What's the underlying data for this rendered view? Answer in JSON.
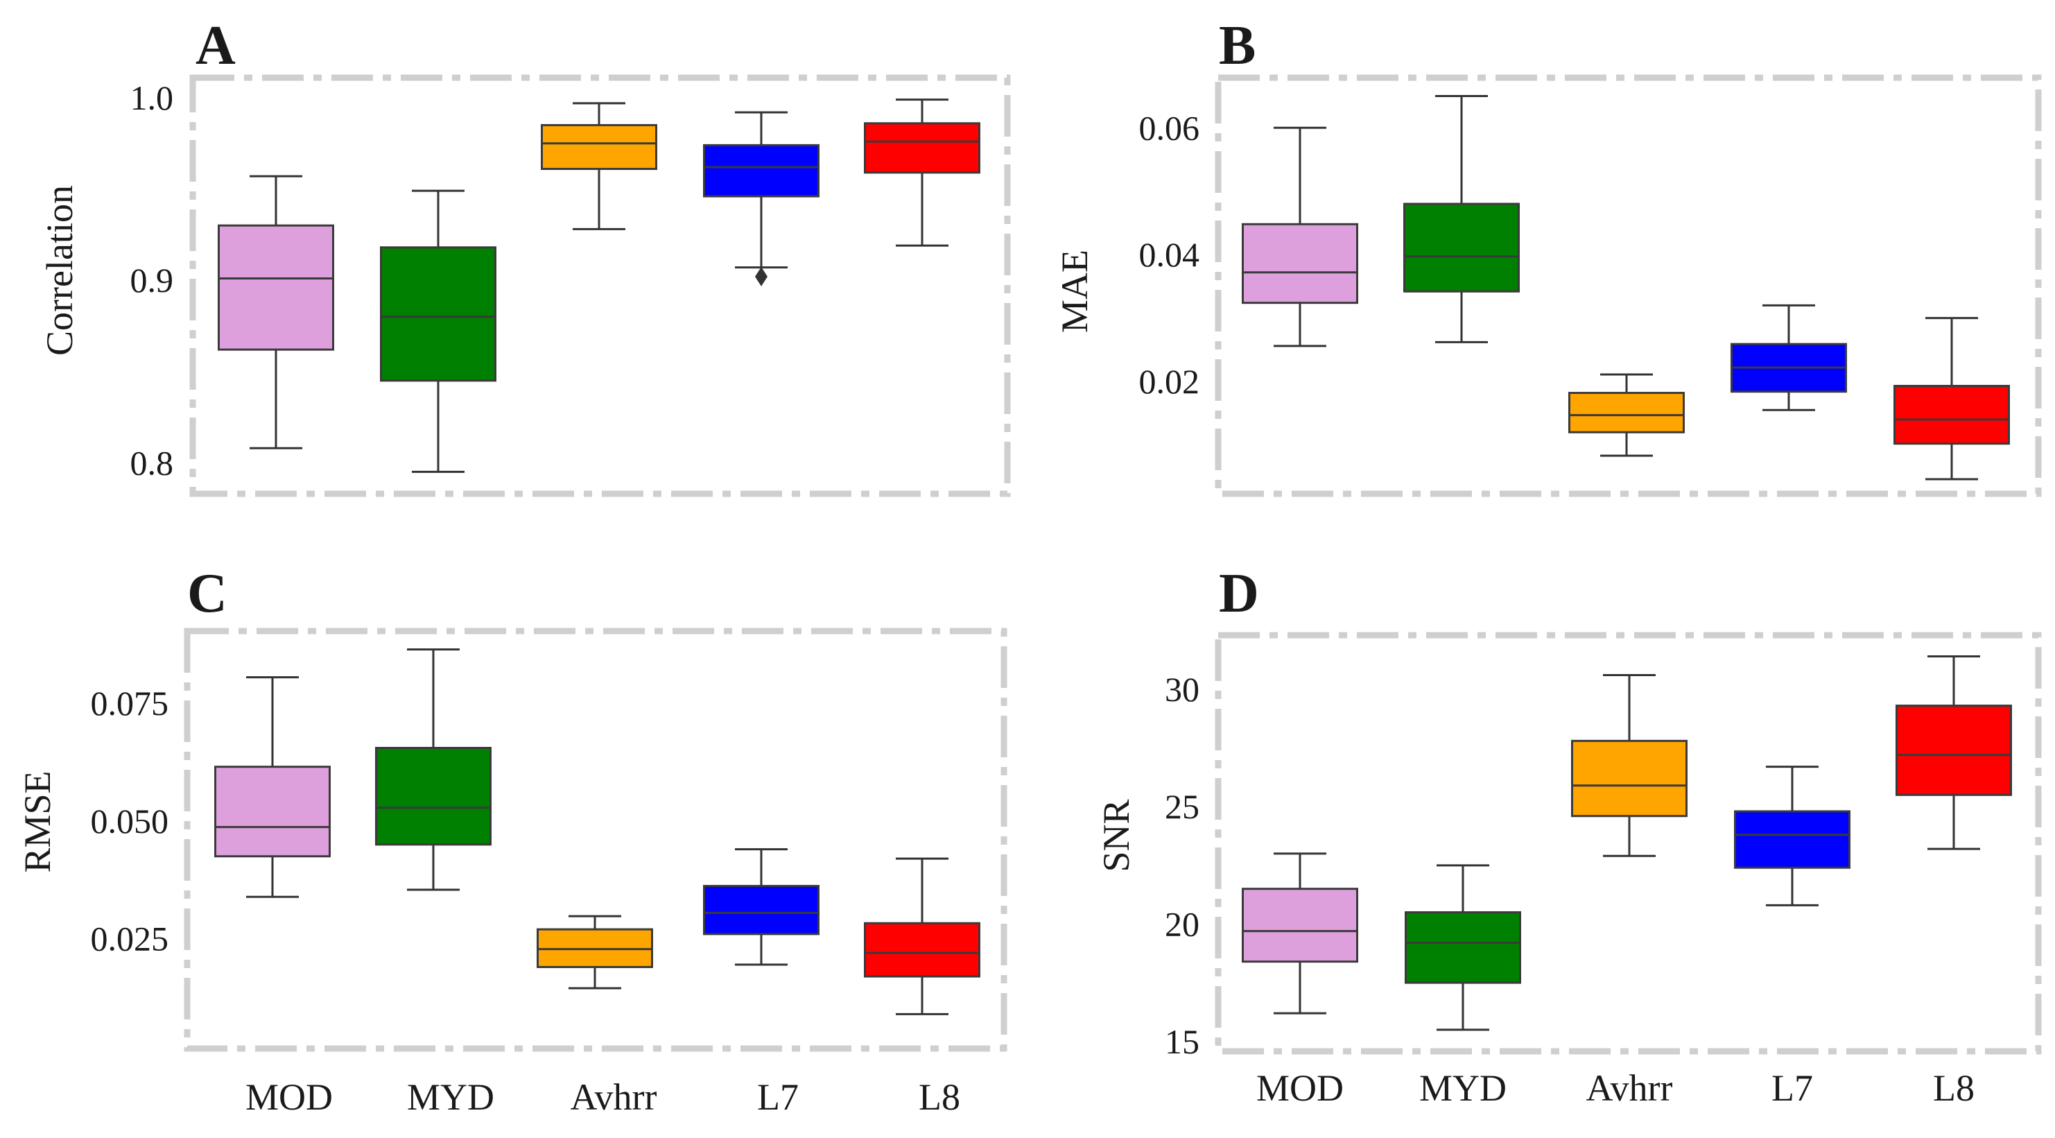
{
  "figure": {
    "categories": [
      "MOD",
      "MYD",
      "Avhrr",
      "L7",
      "L8"
    ],
    "colors": {
      "MOD": "#dda0dd",
      "MYD": "#008000",
      "Avhrr": "#ffa500",
      "L7": "#0000ff",
      "L8": "#ff0000"
    },
    "frame_color": "#cfcfcf"
  },
  "chart_data": [
    {
      "type": "box",
      "panel": "A",
      "title": "",
      "xlabel": "",
      "ylabel": "Correlation",
      "ylim": [
        0.783,
        1.011
      ],
      "yticks": [
        0.8,
        0.9,
        1.0
      ],
      "ytick_labels": [
        "0.8",
        "0.9",
        "1.0"
      ],
      "categories": [
        "MOD",
        "MYD",
        "Avhrr",
        "L7",
        "L8"
      ],
      "boxes": [
        {
          "category": "MOD",
          "whisker_low": 0.808,
          "q1": 0.862,
          "median": 0.901,
          "q3": 0.93,
          "whisker_high": 0.957,
          "outliers": []
        },
        {
          "category": "MYD",
          "whisker_low": 0.795,
          "q1": 0.845,
          "median": 0.88,
          "q3": 0.918,
          "whisker_high": 0.949,
          "outliers": []
        },
        {
          "category": "Avhrr",
          "whisker_low": 0.928,
          "q1": 0.961,
          "median": 0.975,
          "q3": 0.985,
          "whisker_high": 0.997,
          "outliers": []
        },
        {
          "category": "L7",
          "whisker_low": 0.907,
          "q1": 0.946,
          "median": 0.962,
          "q3": 0.974,
          "whisker_high": 0.992,
          "outliers": [
            0.902
          ]
        },
        {
          "category": "L8",
          "whisker_low": 0.919,
          "q1": 0.959,
          "median": 0.976,
          "q3": 0.986,
          "whisker_high": 0.999,
          "outliers": []
        }
      ]
    },
    {
      "type": "box",
      "panel": "B",
      "title": "",
      "xlabel": "",
      "ylabel": "MAE",
      "ylim": [
        0.0023,
        0.0679
      ],
      "yticks": [
        0.02,
        0.04,
        0.06
      ],
      "ytick_labels": [
        "0.02",
        "0.04",
        "0.06"
      ],
      "categories": [
        "MOD",
        "MYD",
        "Avhrr",
        "L7",
        "L8"
      ],
      "boxes": [
        {
          "category": "MOD",
          "whisker_low": 0.0256,
          "q1": 0.0324,
          "median": 0.0372,
          "q3": 0.0448,
          "whisker_high": 0.06,
          "outliers": []
        },
        {
          "category": "MYD",
          "whisker_low": 0.0262,
          "q1": 0.0342,
          "median": 0.0397,
          "q3": 0.048,
          "whisker_high": 0.065,
          "outliers": []
        },
        {
          "category": "Avhrr",
          "whisker_low": 0.0083,
          "q1": 0.012,
          "median": 0.0147,
          "q3": 0.0182,
          "whisker_high": 0.0211,
          "outliers": []
        },
        {
          "category": "L7",
          "whisker_low": 0.0155,
          "q1": 0.0184,
          "median": 0.0222,
          "q3": 0.0259,
          "whisker_high": 0.032,
          "outliers": []
        },
        {
          "category": "L8",
          "whisker_low": 0.0046,
          "q1": 0.0102,
          "median": 0.014,
          "q3": 0.0193,
          "whisker_high": 0.03,
          "outliers": []
        }
      ]
    },
    {
      "type": "box",
      "panel": "C",
      "title": "",
      "xlabel": "",
      "ylabel": "RMSE",
      "ylim": [
        0.0017,
        0.0903
      ],
      "yticks": [
        0.025,
        0.05,
        0.075
      ],
      "ytick_labels": [
        "0.025",
        "0.050",
        "0.075"
      ],
      "categories": [
        "MOD",
        "MYD",
        "Avhrr",
        "L7",
        "L8"
      ],
      "boxes": [
        {
          "category": "MOD",
          "whisker_low": 0.0339,
          "q1": 0.0425,
          "median": 0.0487,
          "q3": 0.0615,
          "whisker_high": 0.0805,
          "outliers": []
        },
        {
          "category": "MYD",
          "whisker_low": 0.0354,
          "q1": 0.045,
          "median": 0.0528,
          "q3": 0.0655,
          "whisker_high": 0.0864,
          "outliers": []
        },
        {
          "category": "Avhrr",
          "whisker_low": 0.0145,
          "q1": 0.019,
          "median": 0.0228,
          "q3": 0.027,
          "whisker_high": 0.0298,
          "outliers": []
        },
        {
          "category": "L7",
          "whisker_low": 0.0195,
          "q1": 0.026,
          "median": 0.0305,
          "q3": 0.0362,
          "whisker_high": 0.044,
          "outliers": []
        },
        {
          "category": "L8",
          "whisker_low": 0.009,
          "q1": 0.017,
          "median": 0.022,
          "q3": 0.0283,
          "whisker_high": 0.042,
          "outliers": []
        }
      ]
    },
    {
      "type": "box",
      "panel": "D",
      "title": "",
      "xlabel": "",
      "ylabel": "SNR",
      "ylim": [
        14.58,
        32.3
      ],
      "yticks": [
        15,
        20,
        25,
        30
      ],
      "ytick_labels": [
        "15",
        "20",
        "25",
        "30"
      ],
      "categories": [
        "MOD",
        "MYD",
        "Avhrr",
        "L7",
        "L8"
      ],
      "boxes": [
        {
          "category": "MOD",
          "whisker_low": 16.2,
          "q1": 18.4,
          "median": 19.7,
          "q3": 21.5,
          "whisker_high": 23.0,
          "outliers": []
        },
        {
          "category": "MYD",
          "whisker_low": 15.5,
          "q1": 17.5,
          "median": 19.2,
          "q3": 20.5,
          "whisker_high": 22.5,
          "outliers": []
        },
        {
          "category": "Avhrr",
          "whisker_low": 22.9,
          "q1": 24.6,
          "median": 25.9,
          "q3": 27.8,
          "whisker_high": 30.6,
          "outliers": []
        },
        {
          "category": "L7",
          "whisker_low": 20.8,
          "q1": 22.4,
          "median": 23.8,
          "q3": 24.8,
          "whisker_high": 26.7,
          "outliers": []
        },
        {
          "category": "L8",
          "whisker_low": 23.2,
          "q1": 25.5,
          "median": 27.2,
          "q3": 29.3,
          "whisker_high": 31.4,
          "outliers": []
        }
      ]
    }
  ]
}
